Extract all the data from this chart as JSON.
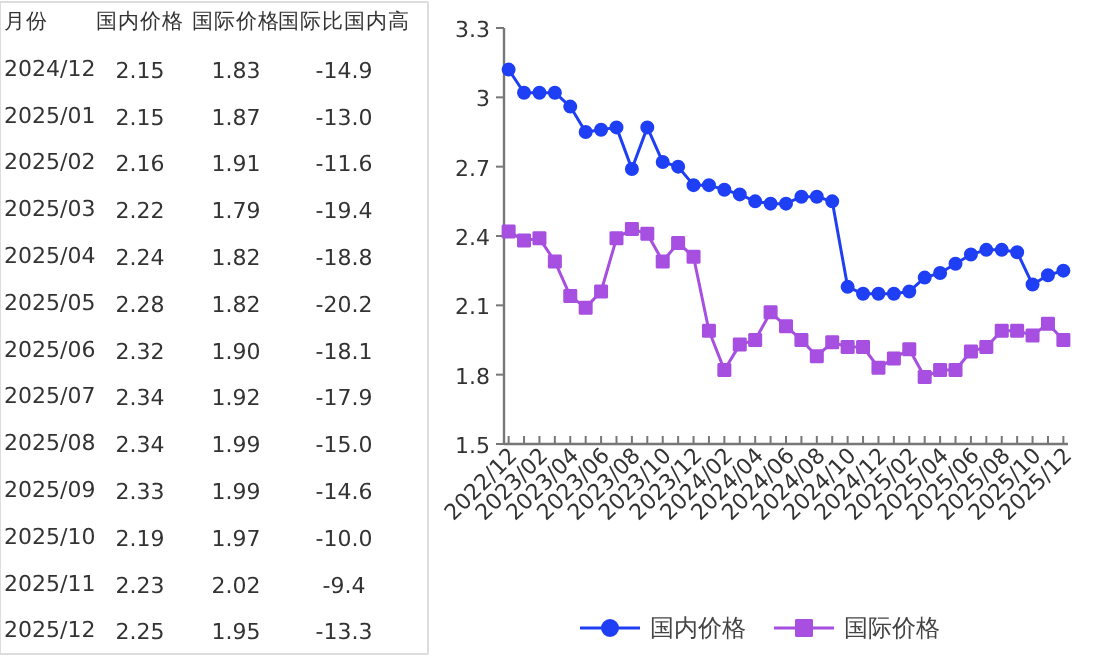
{
  "chart_data": [
    {
      "type": "other",
      "annotations": [
        "月份",
        "国内价格",
        "国际价格",
        "国际比国内高",
        "2024/12",
        "2.15",
        "1.83",
        "-14.9",
        "2025/01",
        "2.15",
        "1.87",
        "-13.0",
        "2025/02",
        "2.16",
        "1.91",
        "-11.6",
        "2025/03",
        "2.22",
        "1.79",
        "-19.4",
        "2025/04",
        "2.24",
        "1.82",
        "-18.8",
        "2025/05",
        "2.28",
        "1.82",
        "-20.2",
        "2025/06",
        "2.32",
        "1.90",
        "-18.1",
        "2025/07",
        "2.34",
        "1.92",
        "-17.9",
        "2025/08",
        "2.34",
        "1.99",
        "-15.0",
        "2025/09",
        "2.33",
        "1.99",
        "-14.6",
        "2025/10",
        "2.19",
        "1.97",
        "-10.0",
        "2025/11",
        "2.23",
        "2.02",
        "-9.4",
        "2025/12",
        "2.25",
        "1.95",
        "-13.3"
      ]
    },
    {
      "type": "line",
      "categories": [
        "2022/12",
        null,
        "2023/02",
        null,
        "2023/04",
        null,
        "2023/06",
        null,
        "2023/08",
        null,
        "2023/10",
        null,
        "2023/12",
        null,
        "2024/02",
        null,
        "2024/04",
        null,
        "2024/06",
        null,
        "2024/08",
        null,
        "2024/10",
        null,
        "2024/12",
        null,
        "2025/02",
        null,
        "2025/04",
        null,
        "2025/06",
        null,
        "2025/08",
        null,
        "2025/10",
        null,
        "2025/12"
      ],
      "ylim": [
        1.5,
        3.3
      ],
      "yticks": [
        1.5,
        1.8,
        2.1,
        2.4,
        2.7,
        {
          "value": 3.0,
          "label": "3"
        },
        3.3
      ],
      "grid": false,
      "legend": "bottom",
      "line_style": "solid",
      "series": [
        {
          "name": "国内价格",
          "color": "#1f3ff5",
          "marker": "circle",
          "values": [
            3.12,
            3.02,
            3.02,
            3.02,
            2.96,
            2.85,
            2.86,
            2.87,
            2.69,
            2.87,
            2.72,
            2.7,
            2.62,
            2.62,
            2.6,
            2.58,
            2.55,
            2.54,
            2.54,
            2.57,
            2.57,
            2.55,
            2.18,
            2.15,
            2.15,
            2.15,
            2.16,
            2.22,
            2.24,
            2.28,
            2.32,
            2.34,
            2.34,
            2.33,
            2.19,
            2.23,
            2.25
          ]
        },
        {
          "name": "国际价格",
          "color": "#a64fe0",
          "marker": "square",
          "values": [
            2.42,
            2.38,
            2.39,
            2.29,
            2.14,
            2.09,
            2.16,
            2.39,
            2.43,
            2.41,
            2.29,
            2.37,
            2.31,
            1.99,
            1.82,
            1.93,
            1.95,
            2.07,
            2.01,
            1.95,
            1.88,
            1.94,
            1.92,
            1.92,
            1.83,
            1.87,
            1.91,
            1.79,
            1.82,
            1.82,
            1.9,
            1.92,
            1.99,
            1.99,
            1.97,
            2.02,
            1.95
          ]
        }
      ]
    }
  ]
}
